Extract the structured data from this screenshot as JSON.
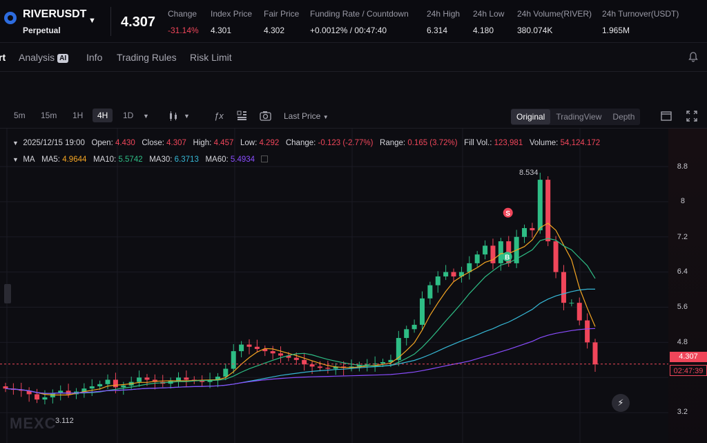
{
  "header": {
    "symbol": "RIVERUSDT",
    "contract_type": "Perpetual",
    "last_price": "4.307",
    "stats": [
      {
        "label": "Change",
        "value": "-31.14%",
        "color": "#f0465a"
      },
      {
        "label": "Index Price",
        "value": "4.301"
      },
      {
        "label": "Fair Price",
        "value": "4.302"
      },
      {
        "label": "Funding Rate / Countdown",
        "value": "+0.0012% / 00:47:40"
      },
      {
        "label": "24h High",
        "value": "6.314"
      },
      {
        "label": "24h Low",
        "value": "4.180"
      },
      {
        "label": "24h Volume(RIVER)",
        "value": "380.074K"
      },
      {
        "label": "24h Turnover(USDT)",
        "value": "1.965M"
      }
    ]
  },
  "tabs": [
    {
      "label": "rt",
      "active": true
    },
    {
      "label": "Analysis",
      "badge": "AI"
    },
    {
      "label": "Info"
    },
    {
      "label": "Trading Rules"
    },
    {
      "label": "Risk Limit"
    }
  ],
  "toolbar": {
    "timeframes": [
      "5m",
      "15m",
      "1H",
      "4H",
      "1D"
    ],
    "active_timeframe": "4H",
    "price_type": "Last Price",
    "views": [
      "Original",
      "TradingView",
      "Depth"
    ],
    "active_view": "Original"
  },
  "ohlc": {
    "date": "2025/12/15 19:00",
    "open_label": "Open:",
    "open": "4.430",
    "close_label": "Close:",
    "close": "4.307",
    "high_label": "High:",
    "high": "4.457",
    "low_label": "Low:",
    "low": "4.292",
    "change_label": "Change:",
    "change": "-0.123 (-2.77%)",
    "range_label": "Range:",
    "range": "0.165 (3.72%)",
    "fillvol_label": "Fill Vol.:",
    "fillvol": "123,981",
    "volume_label": "Volume:",
    "volume": "54,124.172"
  },
  "ma": {
    "label": "MA",
    "ma5_label": "MA5:",
    "ma5": "4.9644",
    "ma10_label": "MA10:",
    "ma10": "5.5742",
    "ma30_label": "MA30:",
    "ma30": "6.3713",
    "ma60_label": "MA60:",
    "ma60": "5.4934"
  },
  "chart_data": {
    "type": "candlestick",
    "y_ticks": [
      "8.8",
      "8",
      "7.2",
      "6.4",
      "5.6",
      "4.8",
      "3.2"
    ],
    "current_price_tag": "4.307",
    "countdown_tag": "02:47:39",
    "high_marker": "8.534",
    "low_marker": "3.112",
    "signals": [
      "S",
      "B"
    ]
  },
  "colors": {
    "up": "#2ebd85",
    "down": "#f0465a",
    "ma5": "#f5a623",
    "ma10": "#2ebd85",
    "ma30": "#36b8d6",
    "ma60": "#8a4dff"
  },
  "watermark": "MEXC"
}
